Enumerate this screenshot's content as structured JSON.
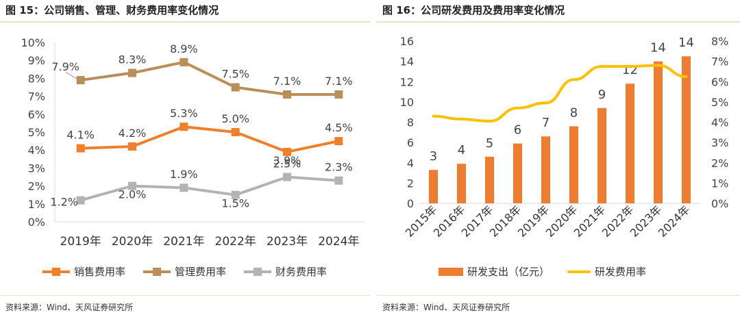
{
  "left_panel": {
    "title": "图 15：公司销售、管理、财务费用率变化情况",
    "source": "资料来源：Wind、天风证券研究所"
  },
  "right_panel": {
    "title": "图 16：公司研发费用及费用率变化情况",
    "source": "资料来源：Wind、天风证券研究所"
  },
  "chart_data": [
    {
      "type": "line",
      "categories": [
        "2019年",
        "2020年",
        "2021年",
        "2022年",
        "2023年",
        "2024年"
      ],
      "ylim": [
        0,
        10
      ],
      "yticks": [
        "0%",
        "1%",
        "2%",
        "3%",
        "4%",
        "5%",
        "6%",
        "7%",
        "8%",
        "9%",
        "10%"
      ],
      "legend_position": "bottom",
      "series": [
        {
          "name": "销售费用率",
          "color": "#f07f29",
          "values": [
            4.1,
            4.2,
            5.3,
            5.0,
            3.9,
            4.5
          ],
          "labels": [
            "4.1%",
            "4.2%",
            "5.3%",
            "5.0%",
            "3.9%",
            "4.5%"
          ]
        },
        {
          "name": "管理费用率",
          "color": "#b98e59",
          "values": [
            7.9,
            8.3,
            8.9,
            7.5,
            7.1,
            7.1
          ],
          "labels": [
            "7.9%",
            "8.3%",
            "8.9%",
            "7.5%",
            "7.1%",
            "7.1%"
          ]
        },
        {
          "name": "财务费用率",
          "color": "#b3b3b3",
          "values": [
            1.2,
            2.0,
            1.9,
            1.5,
            2.5,
            2.3
          ],
          "labels": [
            "1.2%",
            "2.0%",
            "1.9%",
            "1.5%",
            "2.5%",
            "2.3%"
          ]
        }
      ]
    },
    {
      "type": "bar",
      "categories": [
        "2015年",
        "2016年",
        "2017年",
        "2018年",
        "2019年",
        "2020年",
        "2021年",
        "2022年",
        "2023年",
        "2024年"
      ],
      "ylim": [
        0,
        16
      ],
      "yticks": [
        "0",
        "2",
        "4",
        "6",
        "8",
        "10",
        "12",
        "14",
        "16"
      ],
      "y2lim": [
        0,
        8
      ],
      "y2ticks": [
        "0%",
        "1%",
        "2%",
        "3%",
        "4%",
        "5%",
        "6%",
        "7%",
        "8%"
      ],
      "legend_position": "bottom",
      "series": [
        {
          "name": "研发支出（亿元）",
          "kind": "bar",
          "axis": "left",
          "color": "#ee7d31",
          "values": [
            3.3,
            3.9,
            4.6,
            5.9,
            6.6,
            7.6,
            9.4,
            11.8,
            14.0,
            14.5
          ],
          "labels": [
            "3",
            "4",
            "5",
            "6",
            "7",
            "8",
            "9",
            "12",
            "14",
            "14"
          ]
        },
        {
          "name": "研发费用率",
          "kind": "line",
          "axis": "right",
          "color": "#ffc000",
          "values": [
            4.3,
            4.15,
            4.05,
            4.7,
            4.95,
            6.1,
            6.75,
            6.75,
            6.8,
            6.25
          ]
        }
      ]
    }
  ]
}
